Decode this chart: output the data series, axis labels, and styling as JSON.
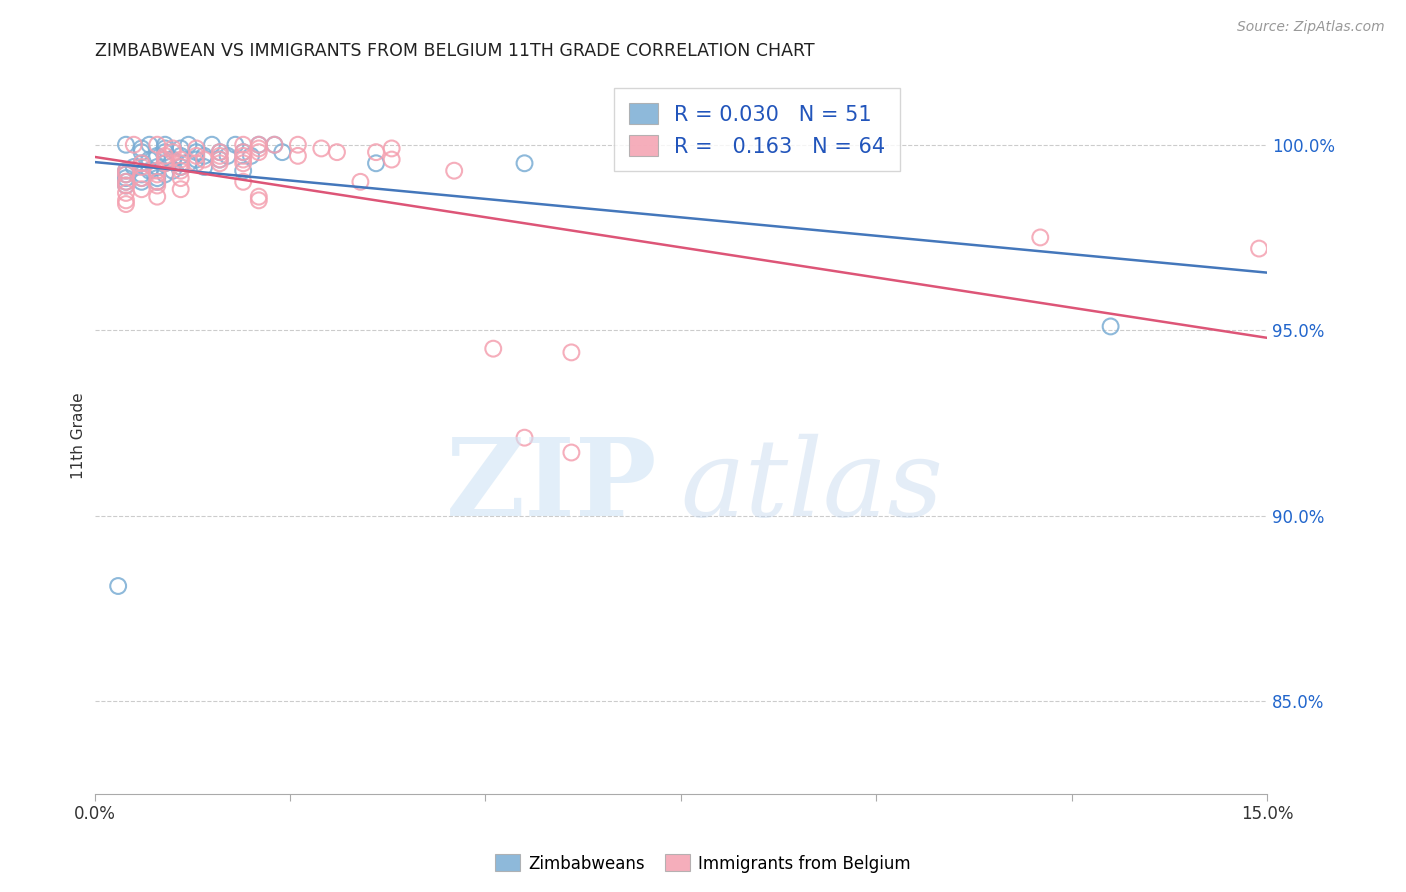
{
  "title": "ZIMBABWEAN VS IMMIGRANTS FROM BELGIUM 11TH GRADE CORRELATION CHART",
  "source": "Source: ZipAtlas.com",
  "ylabel": "11th Grade",
  "xmin": 0.0,
  "xmax": 0.15,
  "ymin": 0.825,
  "ymax": 1.018,
  "yticks": [
    0.85,
    0.9,
    0.95,
    1.0
  ],
  "ytick_labels": [
    "85.0%",
    "90.0%",
    "95.0%",
    "100.0%"
  ],
  "xticks": [
    0.0,
    0.025,
    0.05,
    0.075,
    0.1,
    0.125,
    0.15
  ],
  "xtick_labels": [
    "0.0%",
    "",
    "",
    "",
    "",
    "",
    "15.0%"
  ],
  "grid_color": "#cccccc",
  "blue_color": "#7aadd4",
  "pink_color": "#f4a0b0",
  "blue_line_color": "#4477bb",
  "pink_line_color": "#dd5577",
  "R_blue": 0.03,
  "N_blue": 51,
  "R_pink": 0.163,
  "N_pink": 64,
  "legend_label_color": "#2255bb",
  "blue_scatter": [
    [
      0.004,
      1.0
    ],
    [
      0.007,
      1.0
    ],
    [
      0.009,
      1.0
    ],
    [
      0.012,
      1.0
    ],
    [
      0.015,
      1.0
    ],
    [
      0.018,
      1.0
    ],
    [
      0.021,
      1.0
    ],
    [
      0.023,
      1.0
    ],
    [
      0.006,
      0.999
    ],
    [
      0.009,
      0.999
    ],
    [
      0.011,
      0.999
    ],
    [
      0.006,
      0.998
    ],
    [
      0.009,
      0.998
    ],
    [
      0.013,
      0.998
    ],
    [
      0.016,
      0.998
    ],
    [
      0.019,
      0.998
    ],
    [
      0.024,
      0.998
    ],
    [
      0.008,
      0.997
    ],
    [
      0.011,
      0.997
    ],
    [
      0.014,
      0.997
    ],
    [
      0.017,
      0.997
    ],
    [
      0.02,
      0.997
    ],
    [
      0.007,
      0.996
    ],
    [
      0.01,
      0.996
    ],
    [
      0.013,
      0.996
    ],
    [
      0.016,
      0.996
    ],
    [
      0.006,
      0.995
    ],
    [
      0.009,
      0.995
    ],
    [
      0.012,
      0.995
    ],
    [
      0.036,
      0.995
    ],
    [
      0.005,
      0.994
    ],
    [
      0.008,
      0.994
    ],
    [
      0.011,
      0.994
    ],
    [
      0.014,
      0.994
    ],
    [
      0.004,
      0.993
    ],
    [
      0.007,
      0.993
    ],
    [
      0.01,
      0.993
    ],
    [
      0.019,
      0.993
    ],
    [
      0.004,
      0.992
    ],
    [
      0.006,
      0.992
    ],
    [
      0.009,
      0.992
    ],
    [
      0.004,
      0.991
    ],
    [
      0.006,
      0.991
    ],
    [
      0.008,
      0.991
    ],
    [
      0.004,
      0.99
    ],
    [
      0.006,
      0.99
    ],
    [
      0.008,
      0.99
    ],
    [
      0.004,
      0.989
    ],
    [
      0.055,
      0.995
    ],
    [
      0.13,
      0.951
    ],
    [
      0.003,
      0.881
    ]
  ],
  "pink_scatter": [
    [
      0.005,
      1.0
    ],
    [
      0.008,
      1.0
    ],
    [
      0.019,
      1.0
    ],
    [
      0.021,
      1.0
    ],
    [
      0.023,
      1.0
    ],
    [
      0.026,
      1.0
    ],
    [
      0.01,
      0.999
    ],
    [
      0.013,
      0.999
    ],
    [
      0.021,
      0.999
    ],
    [
      0.029,
      0.999
    ],
    [
      0.038,
      0.999
    ],
    [
      0.01,
      0.998
    ],
    [
      0.016,
      0.998
    ],
    [
      0.019,
      0.998
    ],
    [
      0.021,
      0.998
    ],
    [
      0.031,
      0.998
    ],
    [
      0.036,
      0.998
    ],
    [
      0.009,
      0.997
    ],
    [
      0.013,
      0.997
    ],
    [
      0.016,
      0.997
    ],
    [
      0.019,
      0.997
    ],
    [
      0.026,
      0.997
    ],
    [
      0.009,
      0.996
    ],
    [
      0.011,
      0.996
    ],
    [
      0.014,
      0.996
    ],
    [
      0.016,
      0.996
    ],
    [
      0.019,
      0.996
    ],
    [
      0.006,
      0.995
    ],
    [
      0.009,
      0.995
    ],
    [
      0.011,
      0.995
    ],
    [
      0.013,
      0.995
    ],
    [
      0.016,
      0.995
    ],
    [
      0.019,
      0.995
    ],
    [
      0.006,
      0.994
    ],
    [
      0.011,
      0.994
    ],
    [
      0.004,
      0.993
    ],
    [
      0.008,
      0.993
    ],
    [
      0.011,
      0.993
    ],
    [
      0.004,
      0.992
    ],
    [
      0.008,
      0.992
    ],
    [
      0.006,
      0.991
    ],
    [
      0.011,
      0.991
    ],
    [
      0.004,
      0.99
    ],
    [
      0.008,
      0.99
    ],
    [
      0.019,
      0.99
    ],
    [
      0.034,
      0.99
    ],
    [
      0.004,
      0.989
    ],
    [
      0.008,
      0.989
    ],
    [
      0.006,
      0.988
    ],
    [
      0.011,
      0.988
    ],
    [
      0.004,
      0.987
    ],
    [
      0.008,
      0.986
    ],
    [
      0.021,
      0.986
    ],
    [
      0.004,
      0.985
    ],
    [
      0.021,
      0.985
    ],
    [
      0.004,
      0.984
    ],
    [
      0.046,
      0.993
    ],
    [
      0.038,
      0.996
    ],
    [
      0.055,
      0.921
    ],
    [
      0.061,
      0.917
    ],
    [
      0.051,
      0.945
    ],
    [
      0.061,
      0.944
    ],
    [
      0.121,
      0.975
    ],
    [
      0.149,
      0.972
    ]
  ]
}
